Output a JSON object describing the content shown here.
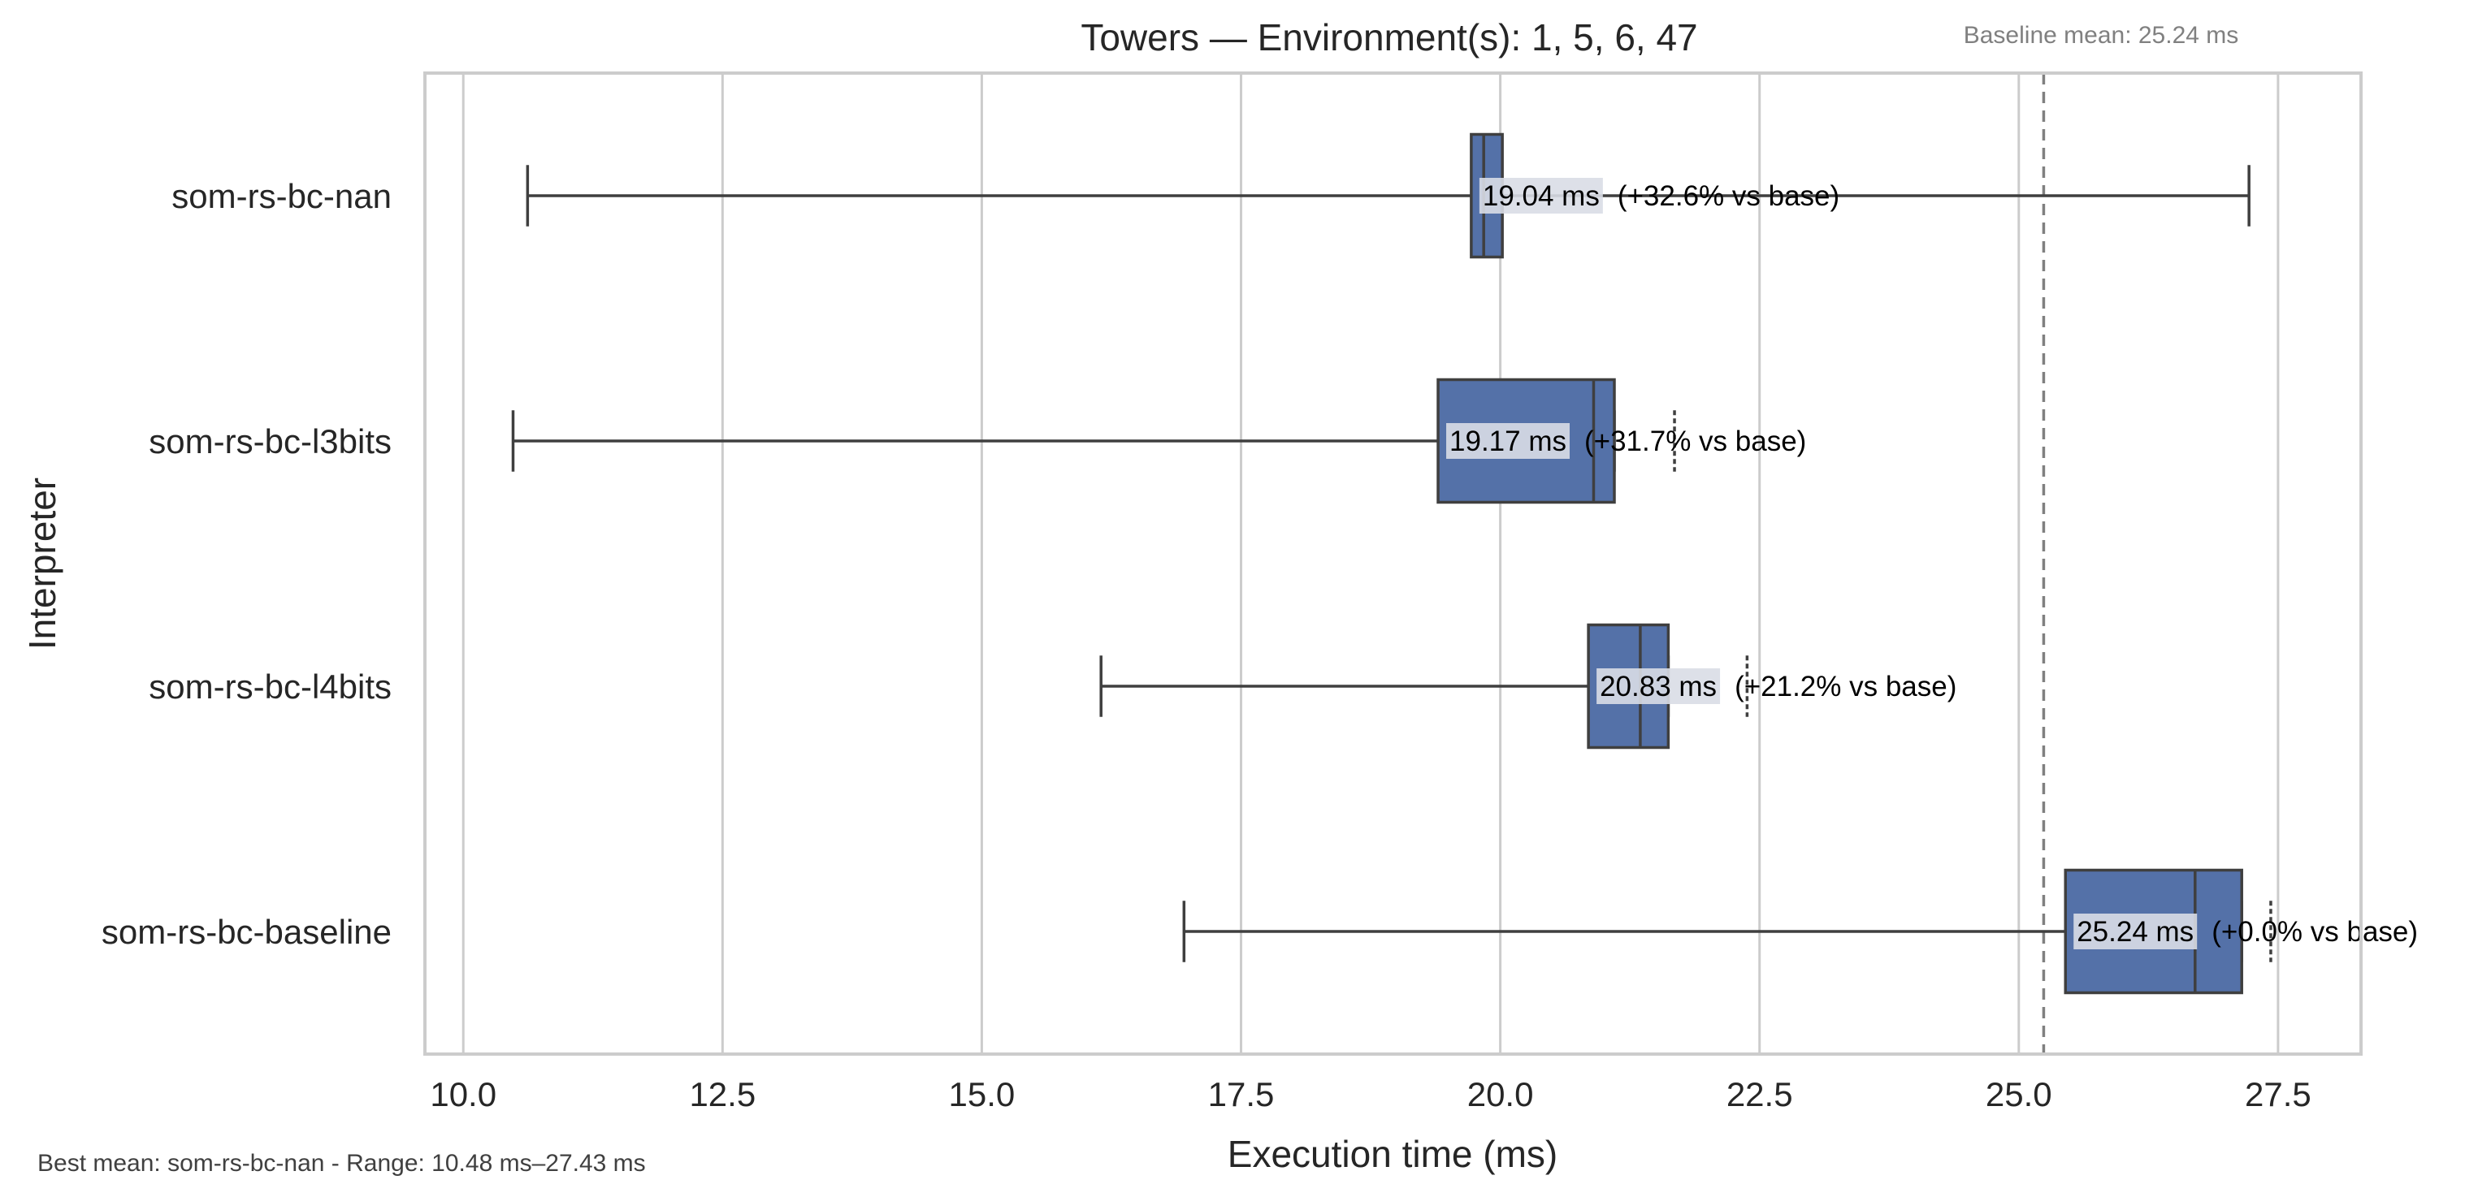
{
  "chart_data": {
    "type": "boxplot",
    "orientation": "horizontal",
    "title": "Towers — Environment(s): 1, 5, 6, 47",
    "xlabel": "Execution time (ms)",
    "ylabel": "Interpreter",
    "xlim": [
      9.63,
      28.3
    ],
    "xticks": [
      10.0,
      12.5,
      15.0,
      17.5,
      20.0,
      22.5,
      25.0,
      27.5
    ],
    "xtick_labels": [
      "10.0",
      "12.5",
      "15.0",
      "17.5",
      "20.0",
      "22.5",
      "25.0",
      "27.5"
    ],
    "grid": true,
    "colors": {
      "box_fill": "#5471a8",
      "box_edge": "#3f3f3f",
      "grid": "#cccccc",
      "frame": "#cccccc",
      "baseline_line": "#808080",
      "label_bg": "#d9dde6"
    },
    "baseline": {
      "value": 25.24,
      "label": "Baseline mean: 25.24 ms"
    },
    "series": [
      {
        "name": "som-rs-bc-nan",
        "whisker_low": 10.62,
        "q1": 19.72,
        "median": 19.84,
        "q3": 20.02,
        "whisker_high": 27.22,
        "outliers": [],
        "mean_label": "19.04 ms",
        "delta_label": "(+32.6% vs base)"
      },
      {
        "name": "som-rs-bc-l3bits",
        "whisker_low": 10.48,
        "q1": 19.4,
        "median": 20.9,
        "q3": 21.1,
        "whisker_high": 21.1,
        "outliers": [
          21.68
        ],
        "mean_label": "19.17 ms",
        "delta_label": "(+31.7% vs base)"
      },
      {
        "name": "som-rs-bc-l4bits",
        "whisker_low": 16.15,
        "q1": 20.85,
        "median": 21.35,
        "q3": 21.62,
        "whisker_high": 21.62,
        "outliers": [
          22.38
        ],
        "mean_label": "20.83 ms",
        "delta_label": "(+21.2% vs base)"
      },
      {
        "name": "som-rs-bc-baseline",
        "whisker_low": 16.95,
        "q1": 25.45,
        "median": 26.7,
        "q3": 27.15,
        "whisker_high": 27.15,
        "outliers": [
          27.43
        ],
        "mean_label": "25.24 ms",
        "delta_label": "(+0.0% vs base)"
      }
    ],
    "footnote": "Best mean: som-rs-bc-nan - Range: 10.48 ms–27.43 ms"
  }
}
